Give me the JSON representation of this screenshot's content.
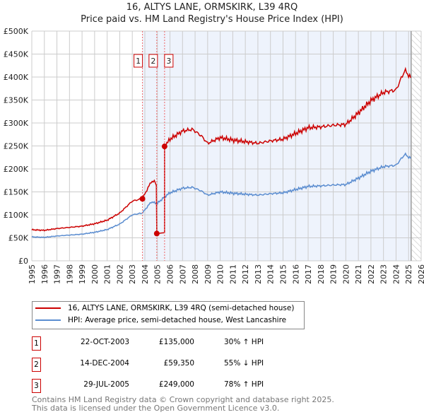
{
  "chart_data": {
    "type": "line",
    "title": "16, ALTYS LANE, ORMSKIRK, L39 4RQ",
    "subtitle": "Price paid vs. HM Land Registry's House Price Index (HPI)",
    "xlim": [
      1995,
      2026
    ],
    "ylim": [
      0,
      500000
    ],
    "x_ticks": [
      "1995",
      "1996",
      "1997",
      "1998",
      "1999",
      "2000",
      "2001",
      "2002",
      "2003",
      "2004",
      "2005",
      "2006",
      "2007",
      "2008",
      "2009",
      "2010",
      "2011",
      "2012",
      "2013",
      "2014",
      "2015",
      "2016",
      "2017",
      "2018",
      "2019",
      "2020",
      "2021",
      "2022",
      "2023",
      "2024",
      "2025",
      "2026"
    ],
    "y_ticks": [
      "£0",
      "£50K",
      "£100K",
      "£150K",
      "£200K",
      "£250K",
      "£300K",
      "£350K",
      "£400K",
      "£450K",
      "£500K"
    ],
    "grid": true,
    "hpi_series": {
      "name": "HPI: Average price, semi-detached house, West Lancashire",
      "color": "#5b8dd0",
      "x": [
        1995,
        1996,
        1997,
        1998,
        1999,
        2000,
        2001,
        2002,
        2003,
        2003.8,
        2004.5,
        2005,
        2005.6,
        2006,
        2007,
        2007.8,
        2008.5,
        2009,
        2010,
        2011,
        2012,
        2013,
        2014,
        2015,
        2016,
        2017,
        2018,
        2019,
        2020,
        2021,
        2022,
        2023,
        2024,
        2024.7,
        2025.2
      ],
      "y": [
        52000,
        51000,
        54000,
        56000,
        58000,
        62000,
        68000,
        80000,
        100000,
        104000,
        128000,
        125000,
        140000,
        148000,
        158000,
        160000,
        152000,
        143000,
        150000,
        147000,
        145000,
        143000,
        146000,
        148000,
        155000,
        162000,
        163000,
        165000,
        166000,
        180000,
        195000,
        205000,
        208000,
        232000,
        222000
      ]
    },
    "property_series": {
      "name": "16, ALTYS LANE, ORMSKIRK, L39 4RQ (semi-detached house)",
      "color": "#cc0000"
    },
    "transactions": [
      {
        "n": "1",
        "date": "22-OCT-2003",
        "x": 2003.81,
        "price": 135000,
        "price_label": "£135,000",
        "hpi": "30% ↑ HPI"
      },
      {
        "n": "2",
        "date": "14-DEC-2004",
        "x": 2004.95,
        "price": 59350,
        "price_label": "£59,350",
        "hpi": "55% ↓ HPI"
      },
      {
        "n": "3",
        "date": "29-JUL-2005",
        "x": 2005.57,
        "price": 249000,
        "price_label": "£249,000",
        "hpi": "78% ↑ HPI"
      }
    ],
    "data_end": 2025.2
  },
  "footer": {
    "line1": "Contains HM Land Registry data © Crown copyright and database right 2025.",
    "line2": "This data is licensed under the Open Government Licence v3.0."
  }
}
